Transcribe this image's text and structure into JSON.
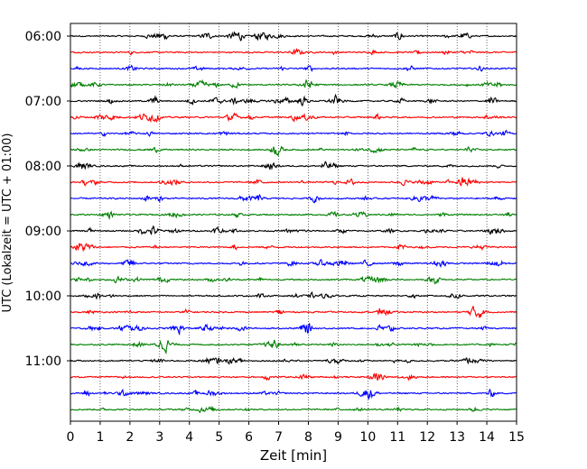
{
  "chart_data": {
    "type": "line",
    "title": "",
    "xlabel": "Zeit  [min]",
    "ylabel": "UTC (Lokalzeit = UTC + 01:00)",
    "xlim": [
      0,
      15
    ],
    "x_ticks": [
      "0",
      "1",
      "2",
      "3",
      "4",
      "5",
      "6",
      "7",
      "8",
      "9",
      "10",
      "11",
      "12",
      "13",
      "14",
      "15"
    ],
    "y_tick_labels": [
      "06:00",
      "07:00",
      "08:00",
      "09:00",
      "10:00",
      "11:00"
    ],
    "grid": "vertical dotted",
    "trace_start": "06:00",
    "trace_interval_minutes": 15,
    "trace_count": 24,
    "trace_colors": [
      "#000000",
      "#ff0000",
      "#0000ff",
      "#008000"
    ],
    "legend": "none"
  }
}
